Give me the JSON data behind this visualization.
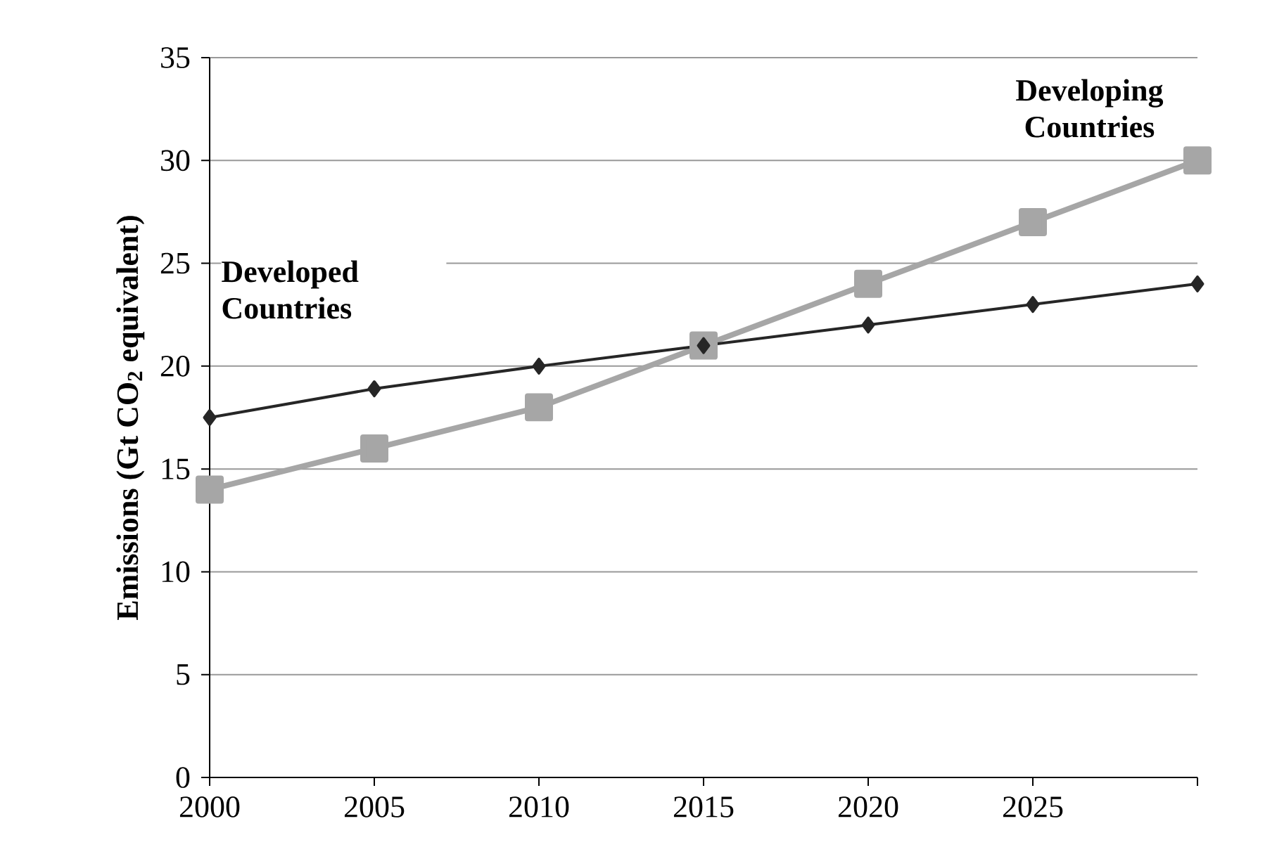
{
  "chart_data": {
    "type": "line",
    "ylabel": "Emissions (Gt CO$_{2}$ equivalent)",
    "x": [
      2000,
      2005,
      2010,
      2015,
      2020,
      2025,
      2030
    ],
    "xlim": [
      2000,
      2030
    ],
    "xticks": [
      2000,
      2005,
      2010,
      2015,
      2020,
      2025,
      {
        "value": 2030,
        "label": null
      }
    ],
    "ylim": [
      0,
      35
    ],
    "yticks": [
      0,
      5,
      10,
      15,
      20,
      25,
      30,
      35
    ],
    "grid": "y",
    "series": [
      {
        "name": "Developed Countries",
        "color": "#262626",
        "marker": "diamond",
        "values": [
          17.5,
          18.9,
          20,
          21,
          22,
          23,
          24
        ]
      },
      {
        "name": "Developing Countries",
        "color": "#a6a6a6",
        "marker": "square",
        "values": [
          14,
          16,
          18,
          21,
          24,
          27,
          30
        ]
      }
    ]
  }
}
